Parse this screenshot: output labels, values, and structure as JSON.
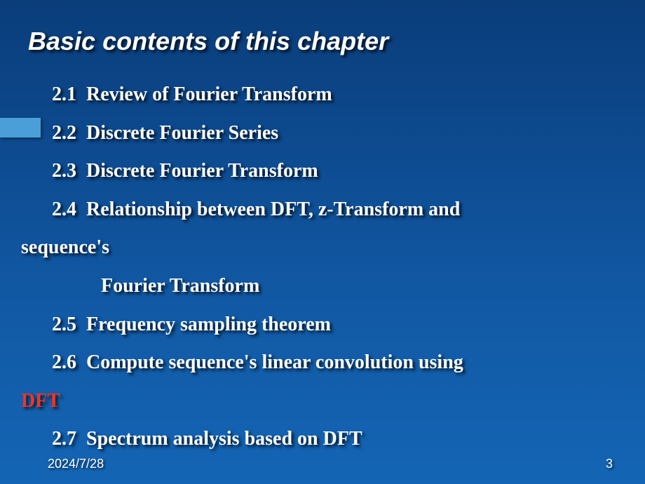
{
  "title": "Basic contents of this chapter",
  "items": {
    "s1": {
      "num": "2.1",
      "text": "Review of Fourier Transform"
    },
    "s2": {
      "num": "2.2",
      "text": "Discrete Fourier Series"
    },
    "s3": {
      "num": "2.3",
      "text": "Discrete Fourier Transform"
    },
    "s4": {
      "num": "2.4",
      "text": "Relationship between DFT,  z-Transform and",
      "cont": "sequence's",
      "sub": "Fourier Transform"
    },
    "s5": {
      "num": "2.5",
      "text": "Frequency sampling theorem"
    },
    "s6": {
      "num": "2.6",
      "text": "Compute sequence's linear convolution using",
      "highlight": "DFT"
    },
    "s7": {
      "num": "2.7",
      "text": "Spectrum analysis based on DFT"
    }
  },
  "footer": {
    "date": "2024/7/28",
    "page": "3"
  },
  "colors": {
    "background_top": "#0a3d7a",
    "background_bottom": "#1465b5",
    "accent_bar": "#4a9fd8",
    "text": "#ffffff",
    "highlight": "#ff3020"
  }
}
